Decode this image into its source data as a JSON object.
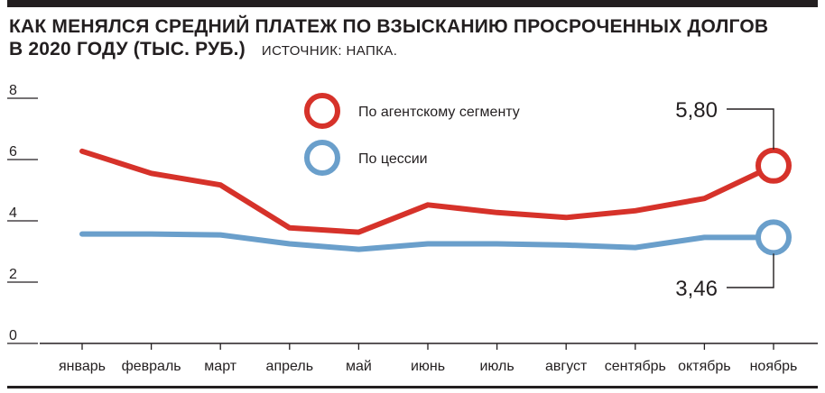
{
  "header": {
    "title_line1": "КАК МЕНЯЛСЯ СРЕДНИЙ ПЛАТЕЖ ПО ВЗЫСКАНИЮ ПРОСРОЧЕННЫХ ДОЛГОВ",
    "title_line2": "В 2020 ГОДУ (ТЫС. РУБ.)",
    "source": "ИСТОЧНИК: НАПКА."
  },
  "colors": {
    "agent": "#d6322a",
    "cession": "#6a9fcb",
    "ink": "#231f20"
  },
  "chart_data": {
    "type": "line",
    "title": "КАК МЕНЯЛСЯ СРЕДНИЙ ПЛАТЕЖ ПО ВЗЫСКАНИЮ ПРОСРОЧЕННЫХ ДОЛГОВ В 2020 ГОДУ (ТЫС. РУБ.)",
    "categories": [
      "январь",
      "февраль",
      "март",
      "апрель",
      "май",
      "июнь",
      "июль",
      "август",
      "сентябрь",
      "октябрь",
      "ноябрь"
    ],
    "y_ticks": [
      "8",
      "6",
      "4",
      "2",
      "0"
    ],
    "ylim": [
      0,
      8
    ],
    "grid": false,
    "legend_position": "top-center",
    "series": [
      {
        "name": "По агентскому сегменту",
        "color": "#d6322a",
        "values": [
          6.27,
          5.55,
          5.17,
          3.77,
          3.63,
          4.52,
          4.27,
          4.11,
          4.33,
          4.73,
          5.8
        ]
      },
      {
        "name": "По цессии",
        "color": "#6a9fcb",
        "values": [
          3.57,
          3.57,
          3.54,
          3.25,
          3.07,
          3.25,
          3.25,
          3.21,
          3.13,
          3.46,
          3.46
        ]
      }
    ],
    "callouts": [
      {
        "series": 0,
        "label": "5,80"
      },
      {
        "series": 1,
        "label": "3,46"
      }
    ]
  }
}
